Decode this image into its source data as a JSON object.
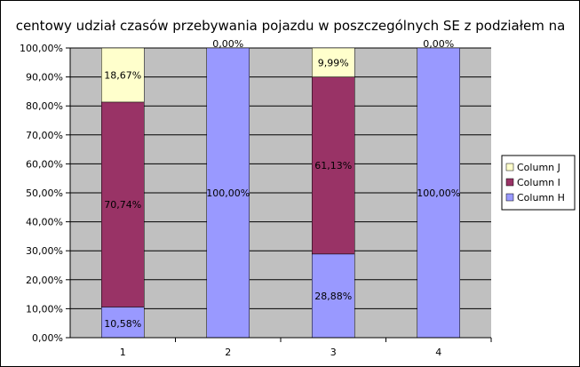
{
  "chart_data": {
    "type": "bar",
    "stacked": true,
    "percent_stacked": true,
    "title": "centowy udział czasów przebywania pojazdu w poszczególnych SE z podziałem na",
    "xlabel": "",
    "ylabel": "",
    "categories": [
      "1",
      "2",
      "3",
      "4"
    ],
    "ylim": [
      0,
      100
    ],
    "y_ticks": [
      "0,00%",
      "10,00%",
      "20,00%",
      "30,00%",
      "40,00%",
      "50,00%",
      "60,00%",
      "70,00%",
      "80,00%",
      "90,00%",
      "100,00%"
    ],
    "grid": true,
    "legend_position": "right",
    "plot_background": "#c0c0c0",
    "series": [
      {
        "name": "Column H",
        "color": "#9999ff",
        "values": [
          10.58,
          100.0,
          28.88,
          100.0
        ],
        "labels": [
          "10,58%",
          "100,00%",
          "28,88%",
          "100,00%"
        ]
      },
      {
        "name": "Column I",
        "color": "#993366",
        "values": [
          70.74,
          0,
          61.13,
          0
        ],
        "labels": [
          "70,74%",
          "",
          "61,13%",
          ""
        ]
      },
      {
        "name": "Column J",
        "color": "#ffffcc",
        "values": [
          18.67,
          0.0,
          9.99,
          0.0
        ],
        "labels": [
          "18,67%",
          "0,00%",
          "9,99%",
          "0,00%"
        ]
      }
    ],
    "legend_order": [
      "Column J",
      "Column I",
      "Column H"
    ]
  }
}
